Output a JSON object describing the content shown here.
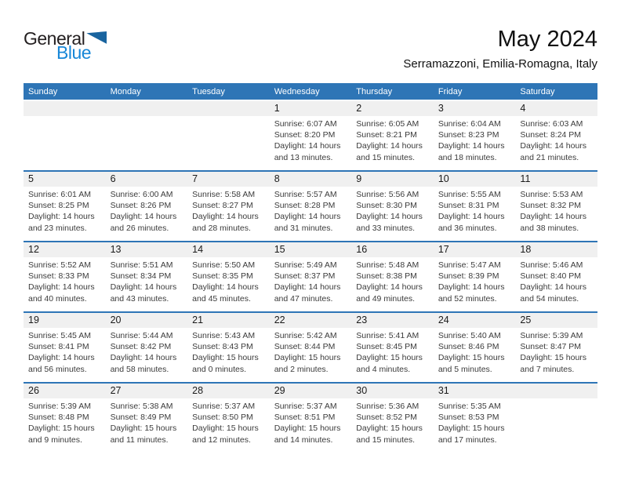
{
  "page": {
    "title": "May 2024",
    "location": "Serramazzoni, Emilia-Romagna, Italy"
  },
  "logo": {
    "first": "General",
    "second": "Blue",
    "triangle_icon": "blue-right-triangle"
  },
  "colors": {
    "header_bar": "#2E75B6",
    "week_divider": "#2E75B6",
    "day_strip": "#F0F0F0",
    "logo_blue": "#1787D8",
    "triangle_blue": "#19649F",
    "header_text": "#FFFFFF",
    "detail_text": "#3B3B3B"
  },
  "weekdays": [
    "Sunday",
    "Monday",
    "Tuesday",
    "Wednesday",
    "Thursday",
    "Friday",
    "Saturday"
  ],
  "weeks": [
    [
      null,
      null,
      null,
      {
        "day": "1",
        "sunrise": "Sunrise: 6:07 AM",
        "sunset": "Sunset: 8:20 PM",
        "daylight_line1": "Daylight: 14 hours",
        "daylight_line2": "and 13 minutes."
      },
      {
        "day": "2",
        "sunrise": "Sunrise: 6:05 AM",
        "sunset": "Sunset: 8:21 PM",
        "daylight_line1": "Daylight: 14 hours",
        "daylight_line2": "and 15 minutes."
      },
      {
        "day": "3",
        "sunrise": "Sunrise: 6:04 AM",
        "sunset": "Sunset: 8:23 PM",
        "daylight_line1": "Daylight: 14 hours",
        "daylight_line2": "and 18 minutes."
      },
      {
        "day": "4",
        "sunrise": "Sunrise: 6:03 AM",
        "sunset": "Sunset: 8:24 PM",
        "daylight_line1": "Daylight: 14 hours",
        "daylight_line2": "and 21 minutes."
      }
    ],
    [
      {
        "day": "5",
        "sunrise": "Sunrise: 6:01 AM",
        "sunset": "Sunset: 8:25 PM",
        "daylight_line1": "Daylight: 14 hours",
        "daylight_line2": "and 23 minutes."
      },
      {
        "day": "6",
        "sunrise": "Sunrise: 6:00 AM",
        "sunset": "Sunset: 8:26 PM",
        "daylight_line1": "Daylight: 14 hours",
        "daylight_line2": "and 26 minutes."
      },
      {
        "day": "7",
        "sunrise": "Sunrise: 5:58 AM",
        "sunset": "Sunset: 8:27 PM",
        "daylight_line1": "Daylight: 14 hours",
        "daylight_line2": "and 28 minutes."
      },
      {
        "day": "8",
        "sunrise": "Sunrise: 5:57 AM",
        "sunset": "Sunset: 8:28 PM",
        "daylight_line1": "Daylight: 14 hours",
        "daylight_line2": "and 31 minutes."
      },
      {
        "day": "9",
        "sunrise": "Sunrise: 5:56 AM",
        "sunset": "Sunset: 8:30 PM",
        "daylight_line1": "Daylight: 14 hours",
        "daylight_line2": "and 33 minutes."
      },
      {
        "day": "10",
        "sunrise": "Sunrise: 5:55 AM",
        "sunset": "Sunset: 8:31 PM",
        "daylight_line1": "Daylight: 14 hours",
        "daylight_line2": "and 36 minutes."
      },
      {
        "day": "11",
        "sunrise": "Sunrise: 5:53 AM",
        "sunset": "Sunset: 8:32 PM",
        "daylight_line1": "Daylight: 14 hours",
        "daylight_line2": "and 38 minutes."
      }
    ],
    [
      {
        "day": "12",
        "sunrise": "Sunrise: 5:52 AM",
        "sunset": "Sunset: 8:33 PM",
        "daylight_line1": "Daylight: 14 hours",
        "daylight_line2": "and 40 minutes."
      },
      {
        "day": "13",
        "sunrise": "Sunrise: 5:51 AM",
        "sunset": "Sunset: 8:34 PM",
        "daylight_line1": "Daylight: 14 hours",
        "daylight_line2": "and 43 minutes."
      },
      {
        "day": "14",
        "sunrise": "Sunrise: 5:50 AM",
        "sunset": "Sunset: 8:35 PM",
        "daylight_line1": "Daylight: 14 hours",
        "daylight_line2": "and 45 minutes."
      },
      {
        "day": "15",
        "sunrise": "Sunrise: 5:49 AM",
        "sunset": "Sunset: 8:37 PM",
        "daylight_line1": "Daylight: 14 hours",
        "daylight_line2": "and 47 minutes."
      },
      {
        "day": "16",
        "sunrise": "Sunrise: 5:48 AM",
        "sunset": "Sunset: 8:38 PM",
        "daylight_line1": "Daylight: 14 hours",
        "daylight_line2": "and 49 minutes."
      },
      {
        "day": "17",
        "sunrise": "Sunrise: 5:47 AM",
        "sunset": "Sunset: 8:39 PM",
        "daylight_line1": "Daylight: 14 hours",
        "daylight_line2": "and 52 minutes."
      },
      {
        "day": "18",
        "sunrise": "Sunrise: 5:46 AM",
        "sunset": "Sunset: 8:40 PM",
        "daylight_line1": "Daylight: 14 hours",
        "daylight_line2": "and 54 minutes."
      }
    ],
    [
      {
        "day": "19",
        "sunrise": "Sunrise: 5:45 AM",
        "sunset": "Sunset: 8:41 PM",
        "daylight_line1": "Daylight: 14 hours",
        "daylight_line2": "and 56 minutes."
      },
      {
        "day": "20",
        "sunrise": "Sunrise: 5:44 AM",
        "sunset": "Sunset: 8:42 PM",
        "daylight_line1": "Daylight: 14 hours",
        "daylight_line2": "and 58 minutes."
      },
      {
        "day": "21",
        "sunrise": "Sunrise: 5:43 AM",
        "sunset": "Sunset: 8:43 PM",
        "daylight_line1": "Daylight: 15 hours",
        "daylight_line2": "and 0 minutes."
      },
      {
        "day": "22",
        "sunrise": "Sunrise: 5:42 AM",
        "sunset": "Sunset: 8:44 PM",
        "daylight_line1": "Daylight: 15 hours",
        "daylight_line2": "and 2 minutes."
      },
      {
        "day": "23",
        "sunrise": "Sunrise: 5:41 AM",
        "sunset": "Sunset: 8:45 PM",
        "daylight_line1": "Daylight: 15 hours",
        "daylight_line2": "and 4 minutes."
      },
      {
        "day": "24",
        "sunrise": "Sunrise: 5:40 AM",
        "sunset": "Sunset: 8:46 PM",
        "daylight_line1": "Daylight: 15 hours",
        "daylight_line2": "and 5 minutes."
      },
      {
        "day": "25",
        "sunrise": "Sunrise: 5:39 AM",
        "sunset": "Sunset: 8:47 PM",
        "daylight_line1": "Daylight: 15 hours",
        "daylight_line2": "and 7 minutes."
      }
    ],
    [
      {
        "day": "26",
        "sunrise": "Sunrise: 5:39 AM",
        "sunset": "Sunset: 8:48 PM",
        "daylight_line1": "Daylight: 15 hours",
        "daylight_line2": "and 9 minutes."
      },
      {
        "day": "27",
        "sunrise": "Sunrise: 5:38 AM",
        "sunset": "Sunset: 8:49 PM",
        "daylight_line1": "Daylight: 15 hours",
        "daylight_line2": "and 11 minutes."
      },
      {
        "day": "28",
        "sunrise": "Sunrise: 5:37 AM",
        "sunset": "Sunset: 8:50 PM",
        "daylight_line1": "Daylight: 15 hours",
        "daylight_line2": "and 12 minutes."
      },
      {
        "day": "29",
        "sunrise": "Sunrise: 5:37 AM",
        "sunset": "Sunset: 8:51 PM",
        "daylight_line1": "Daylight: 15 hours",
        "daylight_line2": "and 14 minutes."
      },
      {
        "day": "30",
        "sunrise": "Sunrise: 5:36 AM",
        "sunset": "Sunset: 8:52 PM",
        "daylight_line1": "Daylight: 15 hours",
        "daylight_line2": "and 15 minutes."
      },
      {
        "day": "31",
        "sunrise": "Sunrise: 5:35 AM",
        "sunset": "Sunset: 8:53 PM",
        "daylight_line1": "Daylight: 15 hours",
        "daylight_line2": "and 17 minutes."
      },
      null
    ]
  ]
}
